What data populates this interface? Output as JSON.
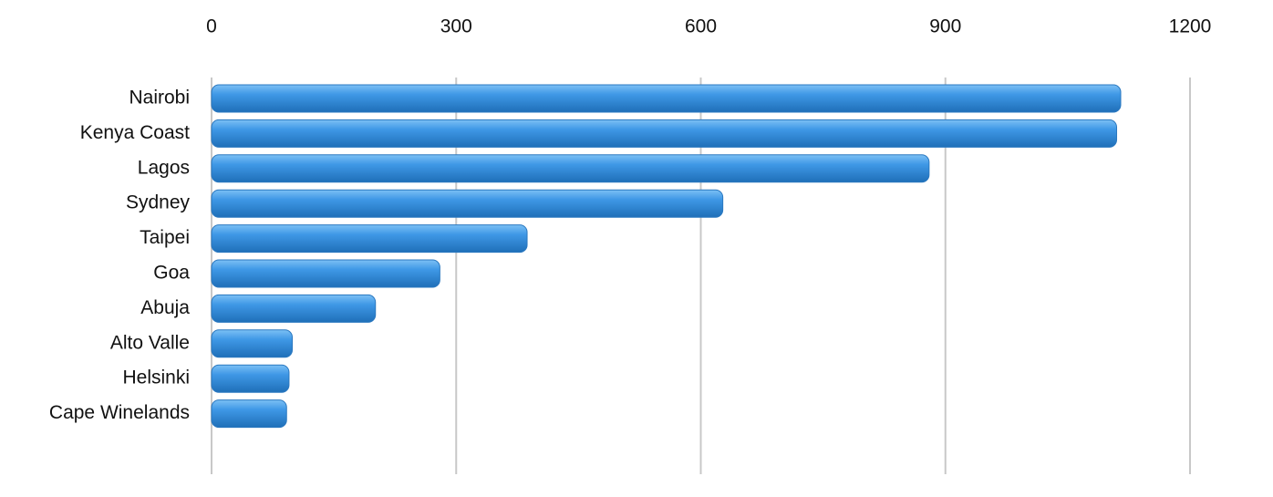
{
  "chart_data": {
    "type": "bar",
    "orientation": "horizontal",
    "categories": [
      "Nairobi",
      "Kenya Coast",
      "Lagos",
      "Sydney",
      "Taipei",
      "Goa",
      "Abuja",
      "Alto Valle",
      "Helsinki",
      "Cape Winelands"
    ],
    "values": [
      1115,
      1110,
      880,
      627,
      387,
      280,
      201,
      99,
      95,
      92
    ],
    "color": "#3a8fdc",
    "xlim": [
      0,
      1200
    ],
    "xticks": [
      0,
      300,
      600,
      900,
      1200
    ],
    "grid": true
  }
}
